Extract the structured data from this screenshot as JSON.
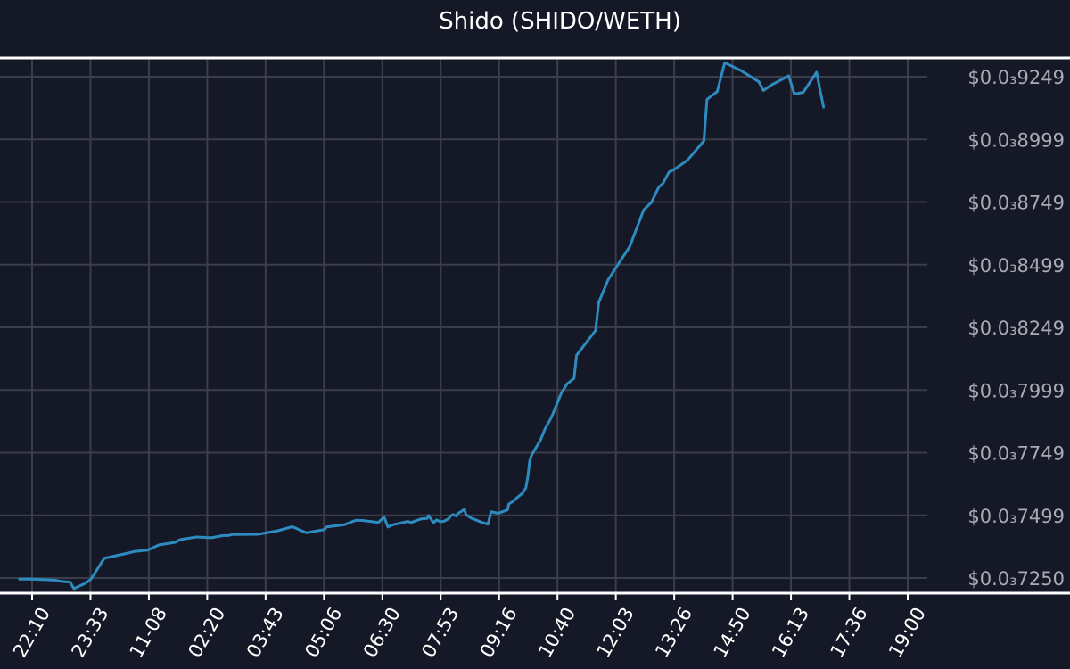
{
  "chart_data": {
    "type": "line",
    "title": "Shido (SHIDO/WETH)",
    "xlabel": "",
    "ylabel": "",
    "x_ticks": [
      "22:10",
      "23:33",
      "11-08",
      "02:20",
      "03:43",
      "05:06",
      "06:30",
      "07:53",
      "09:16",
      "10:40",
      "12:03",
      "13:26",
      "14:50",
      "16:13",
      "17:36",
      "19:00"
    ],
    "y_ticks": [
      "$0.0₃7250",
      "$0.0₃7499",
      "$0.0₃7749",
      "$0.0₃7999",
      "$0.0₃8249",
      "$0.0₃8499",
      "$0.0₃8749",
      "$0.0₃8999",
      "$0.0₃9249"
    ],
    "ylim": [
      0.0007178,
      0.0009313
    ],
    "x_range_minutes": [
      0,
      1383
    ],
    "grid": true,
    "legend": "none",
    "colors": {
      "background": "#151826",
      "grid": "#3a3d4a",
      "line": "#2e8bc0",
      "axis": "#ffffff"
    },
    "series": [
      {
        "x": [
          -20,
          0,
          37,
          45,
          60,
          66,
          84,
          93,
          114,
          146,
          163,
          183,
          200,
          226,
          234,
          260,
          283,
          302,
          310,
          316,
          357,
          388,
          411,
          415,
          433,
          462,
          465,
          493,
          498,
          512,
          522,
          547,
          556,
          562,
          570,
          593,
          599,
          614,
          624,
          626,
          634,
          639,
          644,
          650,
          658,
          661,
          665,
          670,
          672,
          676,
          683,
          685,
          693,
          709,
          720,
          725,
          736,
          751,
          753,
          760,
          765,
          775,
          780,
          783,
          786,
          789,
          803,
          810,
          820,
          836,
          845,
          856,
          860,
          890,
          895,
          910,
          944,
          966,
          978,
          990,
          996,
          1006,
          1014,
          1035,
          1061,
          1066,
          1082,
          1094,
          1120,
          1148,
          1155,
          1169,
          1195,
          1204,
          1218,
          1239,
          1245,
          1250
        ],
        "values": [
          0.0007234,
          0.0007234,
          0.000723,
          0.0007225,
          0.0007222,
          0.0007196,
          0.0007217,
          0.0007234,
          0.0007317,
          0.0007335,
          0.0007345,
          0.000735,
          0.000737,
          0.0007381,
          0.0007392,
          0.0007402,
          0.0007399,
          0.0007408,
          0.0007408,
          0.0007412,
          0.0007413,
          0.0007427,
          0.0007443,
          0.0007439,
          0.0007419,
          0.0007432,
          0.0007442,
          0.0007451,
          0.0007456,
          0.0007469,
          0.0007468,
          0.000746,
          0.0007482,
          0.0007442,
          0.0007451,
          0.0007464,
          0.000746,
          0.0007474,
          0.0007476,
          0.0007488,
          0.0007459,
          0.000747,
          0.0007464,
          0.0007464,
          0.0007475,
          0.0007486,
          0.0007492,
          0.0007485,
          0.0007495,
          0.0007501,
          0.0007513,
          0.0007492,
          0.0007478,
          0.0007462,
          0.0007453,
          0.0007503,
          0.0007497,
          0.000751,
          0.0007534,
          0.0007545,
          0.0007557,
          0.0007578,
          0.0007599,
          0.0007643,
          0.0007706,
          0.0007729,
          0.0007789,
          0.0007832,
          0.0007878,
          0.0007977,
          0.0008013,
          0.0008035,
          0.0008127,
          0.0008226,
          0.0008338,
          0.0008429,
          0.0008561,
          0.0008707,
          0.0008736,
          0.0008799,
          0.0008811,
          0.0008858,
          0.0008868,
          0.0008905,
          0.0008982,
          0.0009148,
          0.0009179,
          0.0009294,
          0.0009262,
          0.0009218,
          0.0009183,
          0.0009207,
          0.0009242,
          0.0009169,
          0.0009176,
          0.0009256,
          0.000918,
          0.0009117
        ]
      }
    ]
  }
}
